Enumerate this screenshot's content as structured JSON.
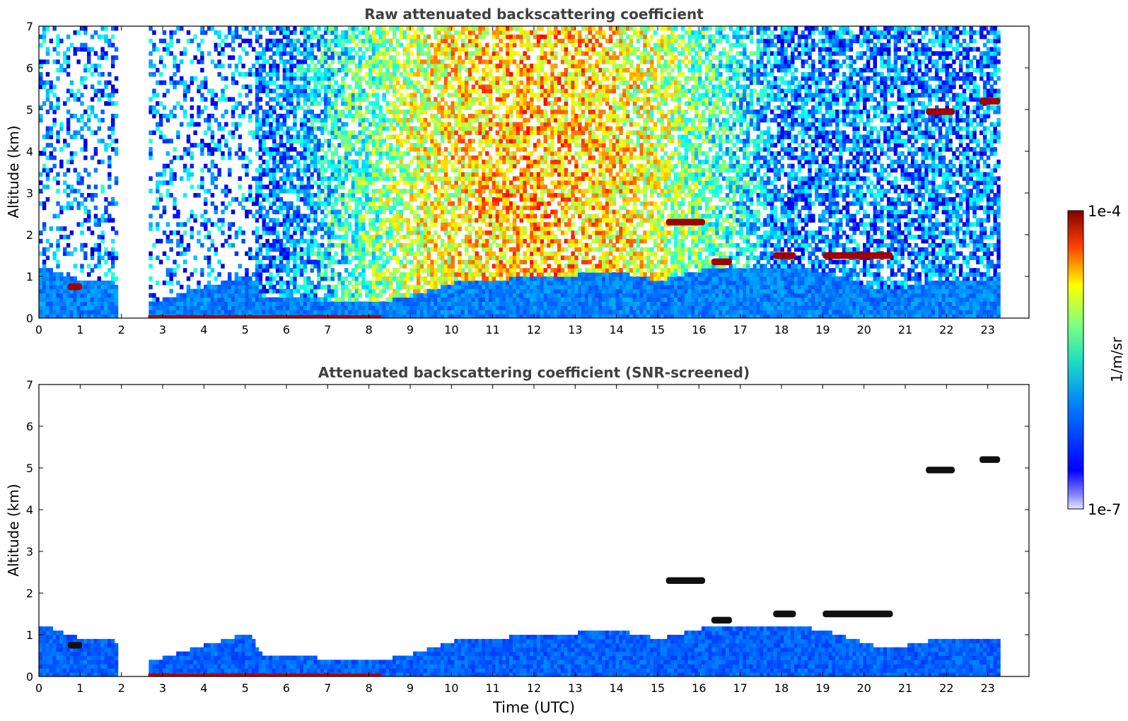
{
  "chart_data": [
    {
      "type": "heatmap",
      "title": "Raw attenuated backscattering coefficient",
      "xlabel": "",
      "ylabel": "Altitude (km)",
      "xlim": [
        0,
        24
      ],
      "ylim": [
        0,
        7
      ],
      "x_ticks": [
        "0",
        "1",
        "2",
        "3",
        "4",
        "5",
        "6",
        "7",
        "8",
        "9",
        "10",
        "11",
        "12",
        "13",
        "14",
        "15",
        "16",
        "17",
        "18",
        "19",
        "20",
        "21",
        "22",
        "23"
      ],
      "y_ticks": [
        "0",
        "1",
        "2",
        "3",
        "4",
        "5",
        "6",
        "7"
      ],
      "data_extent_hours": [
        0,
        23.3
      ],
      "missing_intervals": [
        [
          1.85,
          2.65
        ]
      ],
      "cloud_layers": [
        {
          "start": 0.7,
          "end": 1.05,
          "altitude_km": 0.75
        },
        {
          "start": 15.2,
          "end": 16.15,
          "altitude_km": 2.3
        },
        {
          "start": 16.3,
          "end": 16.8,
          "altitude_km": 1.35
        },
        {
          "start": 17.8,
          "end": 18.35,
          "altitude_km": 1.5
        },
        {
          "start": 19.0,
          "end": 20.7,
          "altitude_km": 1.5
        },
        {
          "start": 21.5,
          "end": 22.2,
          "altitude_km": 4.95
        },
        {
          "start": 22.8,
          "end": 23.3,
          "altitude_km": 5.2
        }
      ]
    },
    {
      "type": "heatmap",
      "title": "Attenuated backscattering coefficient (SNR-screened)",
      "xlabel": "Time (UTC)",
      "ylabel": "Altitude (km)",
      "xlim": [
        0,
        24
      ],
      "ylim": [
        0,
        7
      ],
      "x_ticks": [
        "0",
        "1",
        "2",
        "3",
        "4",
        "5",
        "6",
        "7",
        "8",
        "9",
        "10",
        "11",
        "12",
        "13",
        "14",
        "15",
        "16",
        "17",
        "18",
        "19",
        "20",
        "21",
        "22",
        "23"
      ],
      "y_ticks": [
        "0",
        "1",
        "2",
        "3",
        "4",
        "5",
        "6",
        "7"
      ],
      "boundary_layer_top_km": [
        [
          0,
          1.2
        ],
        [
          1.0,
          0.85
        ],
        [
          1.8,
          0.8
        ],
        [
          2.65,
          0.3
        ],
        [
          5.0,
          1.0
        ],
        [
          5.4,
          0.5
        ],
        [
          8.0,
          0.3
        ],
        [
          9.0,
          0.5
        ],
        [
          10.0,
          0.8
        ],
        [
          12.0,
          0.95
        ],
        [
          14.0,
          1.05
        ],
        [
          15.0,
          0.85
        ],
        [
          16.0,
          1.1
        ],
        [
          18.0,
          1.2
        ],
        [
          19.0,
          1.05
        ],
        [
          20.5,
          0.6
        ],
        [
          22.0,
          0.9
        ],
        [
          23.3,
          0.9
        ]
      ]
    }
  ],
  "colorbar": {
    "label": "1/m/sr",
    "max_label": "1e-4",
    "min_label": "1e-7",
    "scale": "log"
  }
}
